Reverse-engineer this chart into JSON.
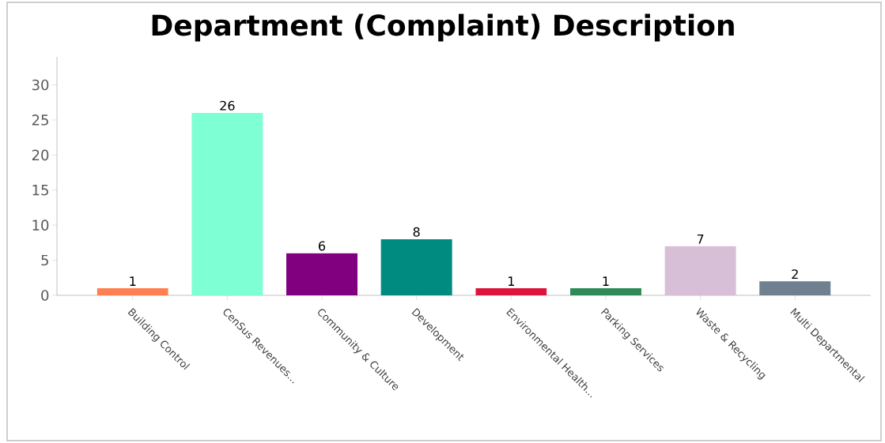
{
  "chart_data": {
    "type": "bar",
    "title": "Department (Complaint) Description",
    "categories": [
      "Building Control",
      "CenSus Revenues...",
      "Community & Culture",
      "Development",
      "Environmental Health...",
      "Parking Services",
      "Waste & Recycling",
      "Multi Departmental"
    ],
    "values": [
      1,
      26,
      6,
      8,
      1,
      1,
      7,
      2
    ],
    "colors": [
      "#ff7f50",
      "#7fffd4",
      "#800080",
      "#008b80",
      "#dc143c",
      "#2e8b57",
      "#d8bfd8",
      "#708090"
    ],
    "ylim": [
      0,
      34
    ],
    "yticks": [
      0,
      5,
      10,
      15,
      20,
      25,
      30
    ],
    "data_labels": true,
    "grid": false
  }
}
